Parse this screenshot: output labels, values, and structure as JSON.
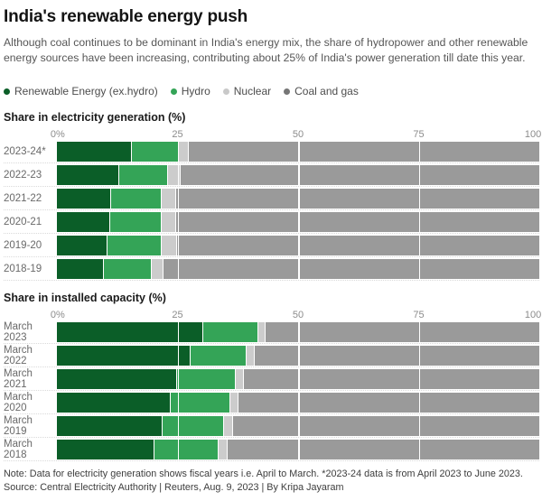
{
  "header": {
    "title": "India's renewable energy push",
    "subtitle": "Although coal continues to be dominant in India's energy mix, the share of hydropower and other renewable energy sources have been increasing, contributing about 25% of India's power generation till date this year."
  },
  "colors": {
    "renewable": "#0b5e28",
    "hydro": "#34a457",
    "nuclear": "#cccccc",
    "coal": "#9a9a9a"
  },
  "legend": {
    "items": [
      {
        "key": "renewable",
        "label": "Renewable Energy (ex.hydro)",
        "dot_color": "#0b5e28"
      },
      {
        "key": "hydro",
        "label": "Hydro",
        "dot_color": "#34a457"
      },
      {
        "key": "nuclear",
        "label": "Nuclear",
        "dot_color": "#c9c9c9"
      },
      {
        "key": "coal",
        "label": "Coal and gas",
        "dot_color": "#767676"
      }
    ]
  },
  "chart_data": [
    {
      "type": "bar",
      "stacked": true,
      "orientation": "horizontal",
      "title": "Share in electricity generation (%)",
      "xlim": [
        0,
        100
      ],
      "xmax": 100,
      "ticks": [
        {
          "label": "0%",
          "value": 0
        },
        {
          "label": "25",
          "value": 25
        },
        {
          "label": "50",
          "value": 50
        },
        {
          "label": "75",
          "value": 75
        },
        {
          "label": "100",
          "value": 100
        }
      ],
      "gridlines": [
        25,
        50,
        75
      ],
      "categories": [
        "2023-24*",
        "2022-23",
        "2021-22",
        "2020-21",
        "2019-20",
        "2018-19"
      ],
      "series": [
        {
          "key": "renewable",
          "name": "Renewable Energy (ex.hydro)",
          "color": "#0b5e28",
          "values": [
            15.4,
            12.8,
            11.0,
            10.8,
            10.3,
            9.6
          ]
        },
        {
          "key": "hydro",
          "name": "Hydro",
          "color": "#34a457",
          "values": [
            9.7,
            10.0,
            10.6,
            10.7,
            11.2,
            9.8
          ]
        },
        {
          "key": "nuclear",
          "name": "Nuclear",
          "color": "#cccccc",
          "values": [
            2.0,
            2.6,
            3.0,
            3.1,
            3.2,
            2.5
          ]
        },
        {
          "key": "coal",
          "name": "Coal and gas",
          "color": "#9a9a9a",
          "values": [
            72.9,
            74.6,
            75.4,
            75.4,
            75.3,
            78.1
          ]
        }
      ]
    },
    {
      "type": "bar",
      "stacked": true,
      "orientation": "horizontal",
      "title": "Share in installed capacity (%)",
      "xlim": [
        0,
        100
      ],
      "xmax": 100,
      "ticks": [
        {
          "label": "0%",
          "value": 0
        },
        {
          "label": "25",
          "value": 25
        },
        {
          "label": "50",
          "value": 50
        },
        {
          "label": "75",
          "value": 75
        },
        {
          "label": "100",
          "value": 100
        }
      ],
      "gridlines": [
        25,
        50,
        75
      ],
      "categories": [
        "March 2023",
        "March 2022",
        "March 2021",
        "March 2020",
        "March 2019",
        "March 2018"
      ],
      "series": [
        {
          "key": "renewable",
          "name": "Renewable Energy (ex.hydro)",
          "color": "#0b5e28",
          "values": [
            30.2,
            27.5,
            24.7,
            23.4,
            21.8,
            20.1
          ]
        },
        {
          "key": "hydro",
          "name": "Hydro",
          "color": "#34a457",
          "values": [
            11.3,
            11.7,
            12.1,
            12.3,
            12.7,
            13.2
          ]
        },
        {
          "key": "nuclear",
          "name": "Nuclear",
          "color": "#cccccc",
          "values": [
            1.6,
            1.7,
            1.8,
            1.8,
            1.9,
            2.0
          ]
        },
        {
          "key": "coal",
          "name": "Coal and gas",
          "color": "#9a9a9a",
          "values": [
            56.9,
            59.1,
            61.4,
            62.5,
            63.6,
            64.7
          ]
        }
      ]
    }
  ],
  "footer": {
    "note": "Note: Data for electricity generation shows fiscal years i.e. April to March. *2023-24 data is from April 2023 to June 2023.",
    "source": "Source: Central Electricity Authority | Reuters, Aug. 9, 2023 | By Kripa Jayaram"
  }
}
